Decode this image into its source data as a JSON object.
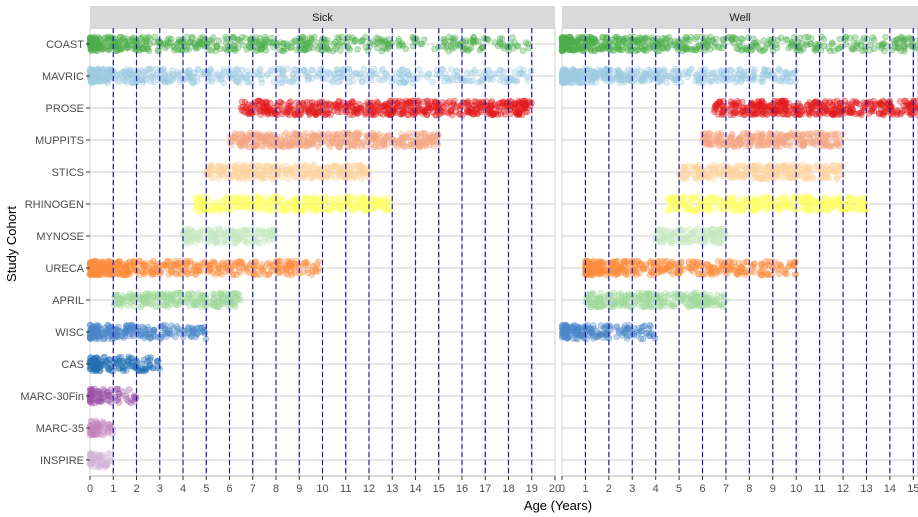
{
  "chart_data": {
    "type": "scatter",
    "title": "",
    "xlabel": "Age (Years)",
    "ylabel": "Study Cohort",
    "panels": [
      {
        "name": "Sick",
        "xlim": [
          0,
          20
        ],
        "xticks": [
          0,
          1,
          2,
          3,
          4,
          5,
          6,
          7,
          8,
          9,
          10,
          11,
          12,
          13,
          14,
          15,
          16,
          17,
          18,
          19,
          20
        ]
      },
      {
        "name": "Well",
        "xlim": [
          0,
          15.2
        ],
        "xticks": [
          0,
          1,
          2,
          3,
          4,
          5,
          6,
          7,
          8,
          9,
          10,
          11,
          12,
          13,
          14,
          15
        ]
      }
    ],
    "dashed_vlines": [
      1,
      2,
      3,
      4,
      5,
      6,
      7,
      8,
      9,
      10,
      11,
      12,
      13,
      14,
      15,
      16,
      17,
      18,
      19
    ],
    "dashed_vline_color": "#1a1ab3",
    "grid": true,
    "cohorts": [
      {
        "name": "COAST",
        "color": "#4daf4a",
        "sick_range": [
          0,
          19
        ],
        "well_range": [
          0,
          15.2
        ]
      },
      {
        "name": "MAVRIC",
        "color": "#9ecae1",
        "sick_range": [
          0,
          19
        ],
        "well_range": [
          0,
          10
        ]
      },
      {
        "name": "PROSE",
        "color": "#e31a1c",
        "sick_range": [
          6.5,
          19
        ],
        "well_range": [
          6.5,
          15.2
        ]
      },
      {
        "name": "MUPPITS",
        "color": "#f4a582",
        "sick_range": [
          6,
          15
        ],
        "well_range": [
          6,
          12
        ]
      },
      {
        "name": "STICS",
        "color": "#fdd49e",
        "sick_range": [
          5,
          12
        ],
        "well_range": [
          5,
          12
        ]
      },
      {
        "name": "RHINOGEN",
        "color": "#ffff66",
        "sick_range": [
          4.5,
          13
        ],
        "well_range": [
          4.5,
          13
        ]
      },
      {
        "name": "MYNOSE",
        "color": "#c7e9c0",
        "sick_range": [
          4,
          8
        ],
        "well_range": [
          4,
          7
        ]
      },
      {
        "name": "URECA",
        "color": "#fd8d3c",
        "sick_range": [
          0,
          10
        ],
        "well_range": [
          1,
          10
        ]
      },
      {
        "name": "APRIL",
        "color": "#a1d99b",
        "sick_range": [
          1,
          6.5
        ],
        "well_range": [
          1,
          7
        ]
      },
      {
        "name": "WISC",
        "color": "#4a86c8",
        "sick_range": [
          0,
          5
        ],
        "well_range": [
          0,
          4
        ]
      },
      {
        "name": "CAS",
        "color": "#2171b5",
        "sick_range": [
          0,
          3
        ],
        "well_range": null
      },
      {
        "name": "MARC-30Fin",
        "color": "#9e55a8",
        "sick_range": [
          0,
          2
        ],
        "well_range": null
      },
      {
        "name": "MARC-35",
        "color": "#c484bd",
        "sick_range": [
          0,
          1
        ],
        "well_range": null
      },
      {
        "name": "INSPIRE",
        "color": "#d4b5d9",
        "sick_range": [
          0,
          0.9
        ],
        "well_range": null
      }
    ]
  }
}
